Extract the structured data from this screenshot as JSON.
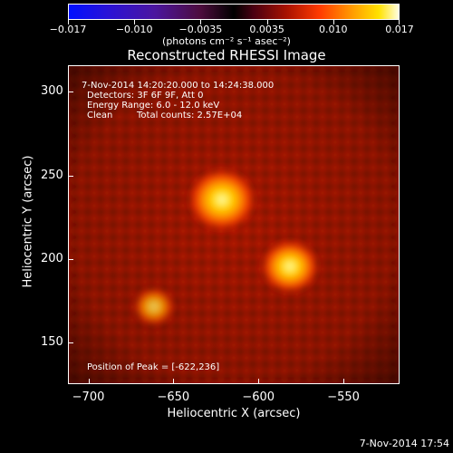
{
  "colorbar": {
    "tick_labels": [
      "−0.017",
      "−0.010",
      "−0.0035",
      "0.0035",
      "0.010",
      "0.017"
    ],
    "units": "(photons cm⁻² s⁻¹ asec⁻²)",
    "min": -0.017,
    "max": 0.017,
    "colors": [
      "#0010ff",
      "#4b169f",
      "#000000",
      "#a81200",
      "#ff9c00",
      "#fffde0"
    ]
  },
  "title": "Reconstructed RHESSI Image",
  "annotations": {
    "time_range": "7-Nov-2014 14:20:20.000 to 14:24:38.000",
    "detectors": "Detectors: 3F 6F 9F, Att 0",
    "energy_range": "Energy Range: 6.0 - 12.0 keV",
    "algorithm": "Clean",
    "total_counts": "Total counts: 2.57E+04",
    "peak_position": "Position of Peak = [-622,236]"
  },
  "axes": {
    "xlabel": "Heliocentric X (arcsec)",
    "ylabel": "Heliocentric Y (arcsec)",
    "xlim": [
      -712,
      -517
    ],
    "ylim": [
      125,
      316
    ],
    "x_ticks": [
      -700,
      -650,
      -600,
      -550
    ],
    "y_ticks": [
      150,
      200,
      250,
      300
    ]
  },
  "sources": [
    {
      "x": -622,
      "y": 236,
      "intensity": 0.017
    },
    {
      "x": -582,
      "y": 196,
      "intensity": 0.013
    },
    {
      "x": -662,
      "y": 172,
      "intensity": 0.006
    }
  ],
  "footer": {
    "timestamp": "7-Nov-2014 17:54"
  }
}
